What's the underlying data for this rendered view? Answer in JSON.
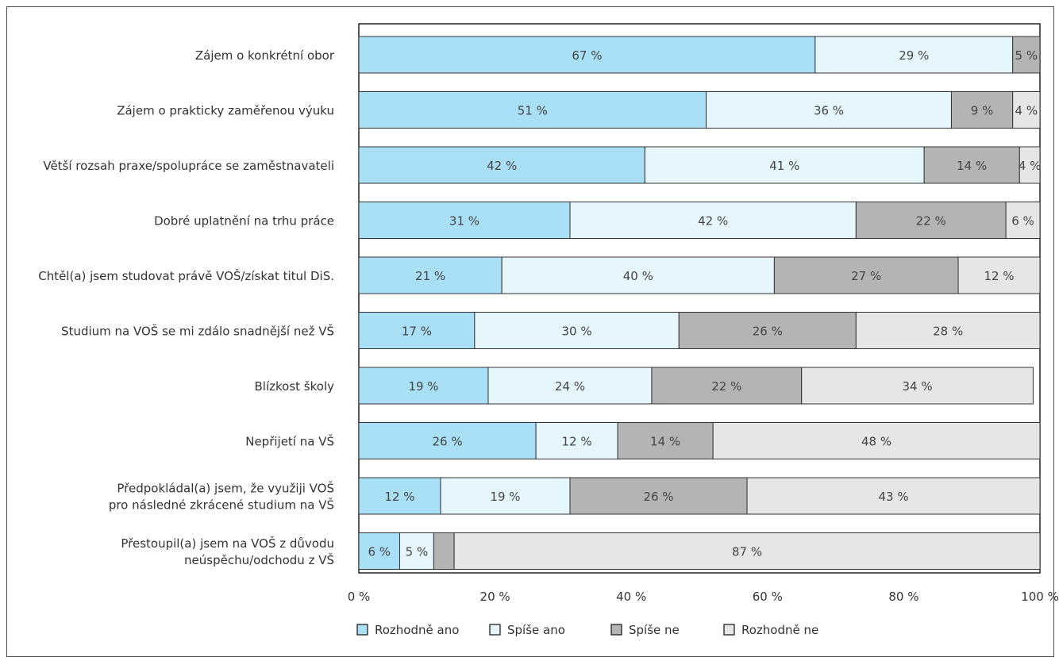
{
  "chart_data": {
    "type": "bar",
    "orientation": "horizontal",
    "stacked": true,
    "categories": [
      [
        "Zájem o konkrétní obor"
      ],
      [
        "Zájem o prakticky zaměřenou výuku"
      ],
      [
        "Větší rozsah praxe/spolupráce se zaměstnavateli"
      ],
      [
        "Dobré uplatnění na trhu práce"
      ],
      [
        "Chtěl(a) jsem studovat právě VOŠ/získat titul DiS."
      ],
      [
        "Studium na VOŠ se mi zdálo snadnější než VŠ"
      ],
      [
        "Blízkost školy"
      ],
      [
        "Nepřijetí na VŠ"
      ],
      [
        "Předpokládal(a) jsem, že využiji VOŠ",
        "pro následné zkrácené studium na VŠ"
      ],
      [
        "Přestoupil(a) jsem na VOŠ z důvodu",
        "neúspěchu/odchodu z VŠ"
      ]
    ],
    "series": [
      {
        "name": "Rozhodně ano",
        "color": "#a9dff7",
        "values": [
          67,
          51,
          42,
          31,
          21,
          17,
          19,
          26,
          12,
          6
        ],
        "labels": [
          "67 %",
          "51 %",
          "42 %",
          "31 %",
          "21 %",
          "17 %",
          "19 %",
          "26 %",
          "12 %",
          "6 %"
        ]
      },
      {
        "name": "Spíše ano",
        "color": "#e6f6fd",
        "values": [
          29,
          36,
          41,
          42,
          40,
          30,
          24,
          12,
          19,
          5
        ],
        "labels": [
          "29 %",
          "36 %",
          "41 %",
          "42 %",
          "40 %",
          "30 %",
          "24 %",
          "12 %",
          "19 %",
          "5 %"
        ]
      },
      {
        "name": "Spíše ne",
        "color": "#b4b4b4",
        "values": [
          5,
          9,
          14,
          22,
          27,
          26,
          22,
          14,
          26,
          3
        ],
        "labels": [
          "5 %",
          "9 %",
          "14 %",
          "22 %",
          "27 %",
          "26 %",
          "22 %",
          "14 %",
          "26 %",
          ""
        ]
      },
      {
        "name": "Rozhodně ne",
        "color": "#e6e6e6",
        "values": [
          0,
          4,
          4,
          6,
          12,
          28,
          34,
          48,
          43,
          87
        ],
        "labels": [
          "",
          "4 %",
          "4 %",
          "6 %",
          "12 %",
          "28 %",
          "34 %",
          "48 %",
          "43 %",
          "87 %"
        ]
      }
    ],
    "xlim": [
      0,
      100
    ],
    "xticks": [
      "0 %",
      "20 %",
      "40 %",
      "60 %",
      "80 %",
      "100 %"
    ],
    "legend_position": "bottom",
    "title": "",
    "xlabel": "",
    "ylabel": "",
    "grid": false
  }
}
